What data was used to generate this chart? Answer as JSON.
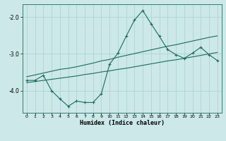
{
  "title": "",
  "xlabel": "Humidex (Indice chaleur)",
  "ylabel": "",
  "background_color": "#cce8e8",
  "line_color": "#1a6b60",
  "grid_color": "#aed4d4",
  "x_values": [
    0,
    1,
    2,
    3,
    4,
    5,
    6,
    7,
    8,
    9,
    10,
    11,
    12,
    13,
    14,
    15,
    16,
    17,
    18,
    19,
    20,
    21,
    22,
    23
  ],
  "y_main": [
    -3.72,
    -3.72,
    -3.58,
    -4.0,
    -4.22,
    -4.42,
    -4.28,
    -4.32,
    -4.32,
    -4.08,
    -3.28,
    -2.98,
    -2.52,
    -2.08,
    -1.82,
    -2.18,
    -2.52,
    -2.88,
    -3.02,
    -3.12,
    -2.98,
    -2.82,
    -3.02,
    -3.18
  ],
  "y_upper": [
    -3.62,
    -3.57,
    -3.52,
    -3.47,
    -3.42,
    -3.39,
    -3.35,
    -3.3,
    -3.25,
    -3.19,
    -3.15,
    -3.09,
    -3.04,
    -2.99,
    -2.94,
    -2.89,
    -2.84,
    -2.79,
    -2.75,
    -2.7,
    -2.65,
    -2.6,
    -2.55,
    -2.51
  ],
  "y_lower": [
    -3.78,
    -3.75,
    -3.72,
    -3.69,
    -3.66,
    -3.63,
    -3.6,
    -3.56,
    -3.53,
    -3.49,
    -3.46,
    -3.42,
    -3.39,
    -3.35,
    -3.31,
    -3.27,
    -3.23,
    -3.19,
    -3.16,
    -3.12,
    -3.08,
    -3.04,
    -3.0,
    -2.96
  ],
  "ylim": [
    -4.6,
    -1.65
  ],
  "xlim": [
    -0.5,
    23.5
  ],
  "yticks": [
    -4.0,
    -3.0,
    -2.0
  ],
  "xticks": [
    0,
    1,
    2,
    3,
    4,
    5,
    6,
    7,
    8,
    9,
    10,
    11,
    12,
    13,
    14,
    15,
    16,
    17,
    18,
    19,
    20,
    21,
    22,
    23
  ]
}
